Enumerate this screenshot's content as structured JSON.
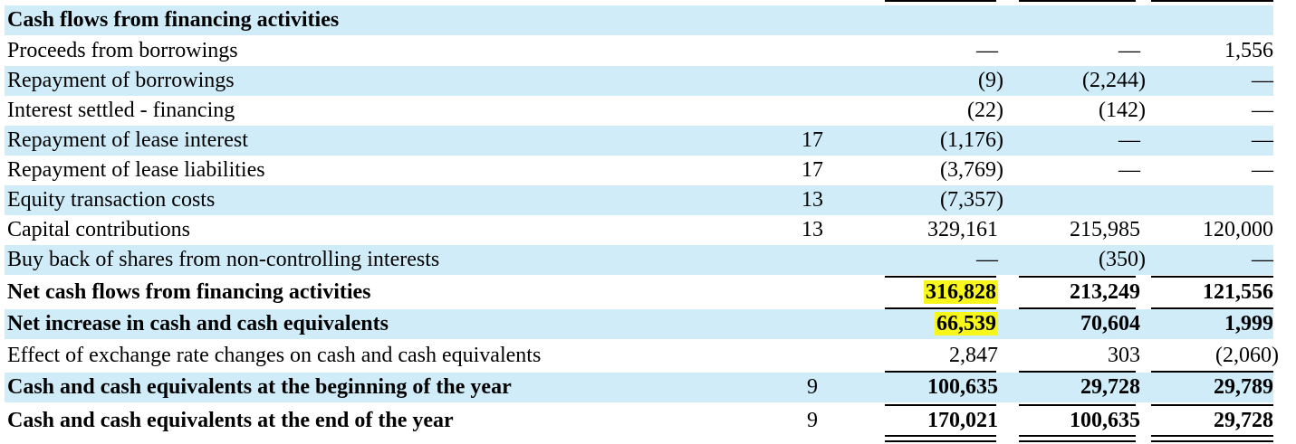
{
  "section_title": "Cash flows from financing activities",
  "rows": [
    {
      "label": "Proceeds from borrowings",
      "note": "",
      "c1": "—",
      "c2": "—",
      "c3": "1,556"
    },
    {
      "label": "Repayment of borrowings",
      "note": "",
      "c1": "(9)",
      "c2": "(2,244)",
      "c3": "—"
    },
    {
      "label": "Interest settled - financing",
      "note": "",
      "c1": "(22)",
      "c2": "(142)",
      "c3": "—"
    },
    {
      "label": "Repayment of lease interest",
      "note": "17",
      "c1": "(1,176)",
      "c2": "—",
      "c3": "—"
    },
    {
      "label": "Repayment of lease liabilities",
      "note": "17",
      "c1": "(3,769)",
      "c2": "—",
      "c3": "—"
    },
    {
      "label": "Equity transaction costs",
      "note": "13",
      "c1": "(7,357)",
      "c2": "",
      "c3": ""
    },
    {
      "label": "Capital contributions",
      "note": "13",
      "c1": "329,161",
      "c2": "215,985",
      "c3": "120,000"
    },
    {
      "label": "Buy back of shares from non-controlling interests",
      "note": "",
      "c1": "—",
      "c2": "(350)",
      "c3": "—"
    },
    {
      "label": "Net cash flows from financing activities",
      "note": "",
      "c1": "316,828",
      "c2": "213,249",
      "c3": "121,556"
    },
    {
      "label": "Net increase in cash and cash equivalents",
      "note": "",
      "c1": "66,539",
      "c2": "70,604",
      "c3": "1,999"
    },
    {
      "label": "Effect of exchange rate changes on cash and cash equivalents",
      "note": "",
      "c1": "2,847",
      "c2": "303",
      "c3": "(2,060)"
    },
    {
      "label": "Cash and cash equivalents at the beginning of the year",
      "note": "9",
      "c1": "100,635",
      "c2": "29,728",
      "c3": "29,789"
    },
    {
      "label": "Cash and cash equivalents at the end of the year",
      "note": "9",
      "c1": "170,021",
      "c2": "100,635",
      "c3": "29,728"
    }
  ],
  "highlight_color": "#f7f71c",
  "shade_color": "#d0ecf9"
}
